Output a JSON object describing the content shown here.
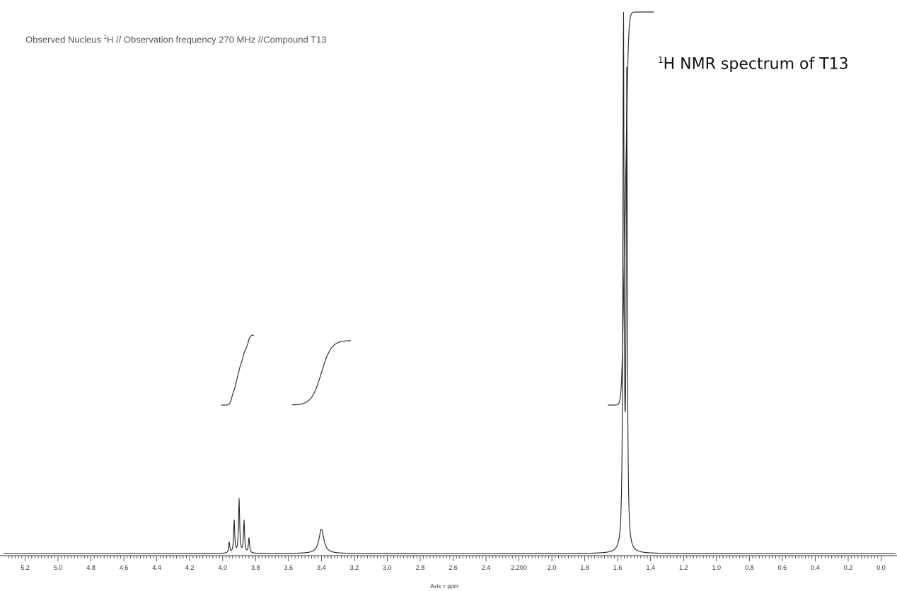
{
  "header": {
    "prefix": "Observed Nucleus ",
    "sup": "1",
    "suffix": "H // Observation frequency 270 MHz //Compound T13"
  },
  "title": {
    "sup": "1",
    "text": "H NMR spectrum of T13"
  },
  "chart_data": {
    "type": "line",
    "xlabel": "Axis = ppm",
    "xlim": [
      5.3,
      0.0
    ],
    "x_reversed": true,
    "grid": false,
    "tick_labels": [
      "5.2",
      "5.0",
      "4.8",
      "4.6",
      "4.4",
      "4.2",
      "4.0",
      "3.8",
      "3.6",
      "3.4",
      "3.2",
      "3.0",
      "2.8",
      "2.6",
      "2.4",
      "2.200",
      "2.0",
      "1.8",
      "1.6",
      "1.4",
      "1.2",
      "1.0",
      "0.8",
      "0.6",
      "0.4",
      "0.2",
      "0.0"
    ],
    "tick_values": [
      5.2,
      5.0,
      4.8,
      4.6,
      4.4,
      4.2,
      4.0,
      3.8,
      3.6,
      3.4,
      3.2,
      3.0,
      2.8,
      2.6,
      2.4,
      2.2,
      2.0,
      1.8,
      1.6,
      1.4,
      1.2,
      1.0,
      0.8,
      0.6,
      0.4,
      0.2,
      0.0
    ],
    "peaks": [
      {
        "ppm": 3.96,
        "height": 0.02,
        "width": 0.004
      },
      {
        "ppm": 3.93,
        "height": 0.06,
        "width": 0.004
      },
      {
        "ppm": 3.9,
        "height": 0.1,
        "width": 0.004
      },
      {
        "ppm": 3.87,
        "height": 0.06,
        "width": 0.004
      },
      {
        "ppm": 3.84,
        "height": 0.028,
        "width": 0.004
      },
      {
        "ppm": 3.4,
        "height": 0.045,
        "width": 0.018
      },
      {
        "ppm": 1.565,
        "height": 1.0,
        "width": 0.004
      },
      {
        "ppm": 1.545,
        "height": 0.86,
        "width": 0.004
      }
    ],
    "integrals": [
      {
        "from": 4.01,
        "to": 3.81,
        "level_start": 0.27,
        "level_end": 0.4,
        "steps": [
          3.945,
          3.92,
          3.9,
          3.875,
          3.845
        ]
      },
      {
        "from": 3.58,
        "to": 3.22,
        "level_start": 0.27,
        "level_end": 0.39,
        "steps": [
          3.4
        ]
      },
      {
        "from": 1.66,
        "to": 1.38,
        "level_start": 0.27,
        "level_end": 1.0,
        "steps": [
          1.565,
          1.545
        ]
      }
    ]
  }
}
